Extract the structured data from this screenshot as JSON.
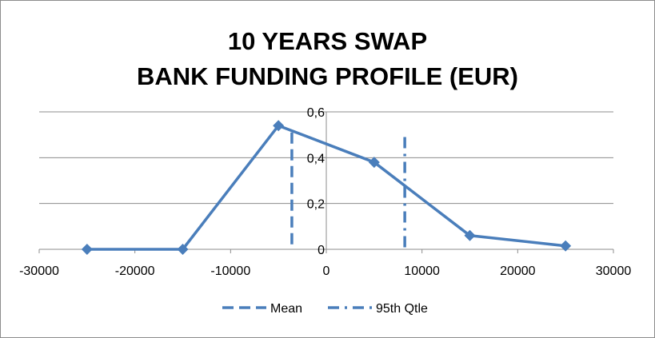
{
  "chart_data": {
    "type": "line",
    "title_lines": [
      "10 YEARS SWAP",
      "BANK FUNDING PROFILE (EUR)"
    ],
    "x": [
      -25000,
      -15000,
      -5000,
      5000,
      15000,
      25000
    ],
    "series": [
      {
        "values": [
          0,
          0,
          0.54,
          0.38,
          0.06,
          0.015
        ],
        "color": "#4a7ebb"
      }
    ],
    "vlines": [
      {
        "name": "Mean",
        "x": -3600,
        "style": "dashed",
        "color": "#4a7ebb"
      },
      {
        "name": "95th Qtle",
        "x": 8200,
        "style": "dash-dot",
        "color": "#4a7ebb"
      }
    ],
    "xlim": [
      -30000,
      30000
    ],
    "ylim": [
      0,
      0.6
    ],
    "xticks": [
      "-30000",
      "-20000",
      "-10000",
      "0",
      "10000",
      "20000",
      "30000"
    ],
    "xtick_values": [
      -30000,
      -20000,
      -10000,
      0,
      10000,
      20000,
      30000
    ],
    "yticks": [
      "0",
      "0,2",
      "0,4",
      "0,6"
    ],
    "ytick_values": [
      0,
      0.2,
      0.4,
      0.6
    ],
    "grid": true,
    "legend_position": "bottom"
  }
}
